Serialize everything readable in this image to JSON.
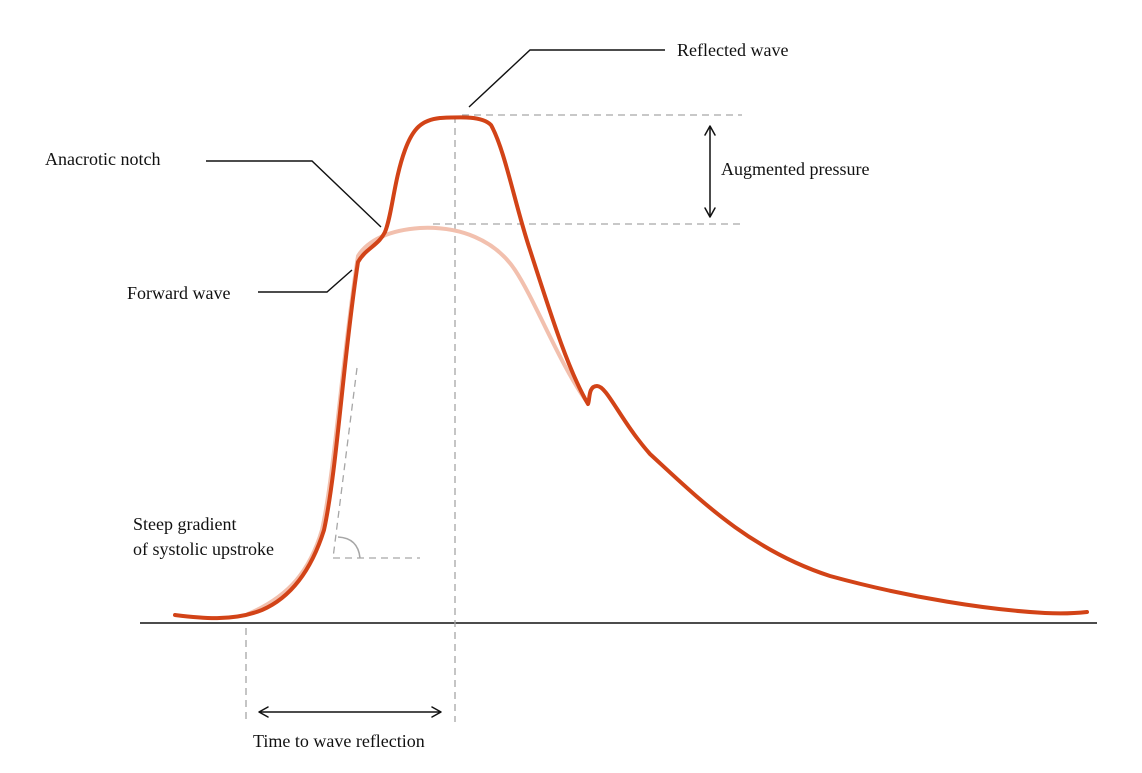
{
  "diagram": {
    "labels": {
      "reflected_wave": "Reflected wave",
      "anacrotic_notch": "Anacrotic notch",
      "augmented_pressure": "Augmented pressure",
      "forward_wave": "Forward wave",
      "steep_gradient_line1": "Steep gradient",
      "steep_gradient_line2": "of systolic upstroke",
      "time_to_wave_reflection": "Time to wave reflection"
    },
    "colors": {
      "reflected_wave_curve": "#d24317",
      "forward_wave_curve": "#f2c0ae",
      "guide_lines": "#a6a6a6",
      "text_and_arrows": "#111111"
    }
  }
}
